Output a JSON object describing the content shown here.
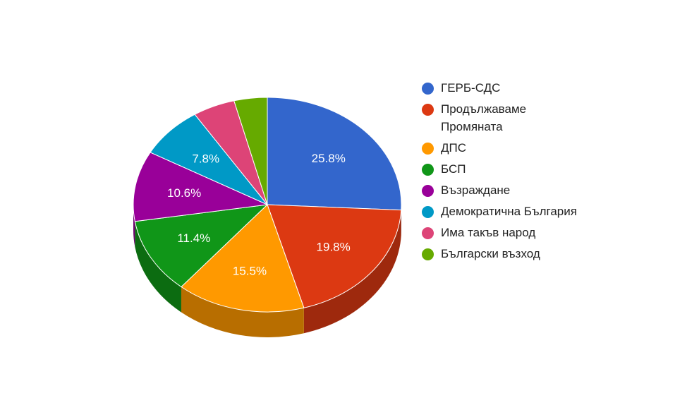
{
  "chart_data": {
    "type": "pie",
    "title": "",
    "legend_position": "right",
    "labels_on_slices": true,
    "slices": [
      {
        "label": "ГЕРБ-СДС",
        "value": 25.8,
        "value_label": "25.8%",
        "color": "#3366cc"
      },
      {
        "label": "Продължаваме Промяната",
        "value": 19.8,
        "value_label": "19.8%",
        "color": "#dc3912"
      },
      {
        "label": "ДПС",
        "value": 15.5,
        "value_label": "15.5%",
        "color": "#ff9900"
      },
      {
        "label": "БСП",
        "value": 11.4,
        "value_label": "11.4%",
        "color": "#109618"
      },
      {
        "label": "Възраждане",
        "value": 10.6,
        "value_label": "10.6%",
        "color": "#990099"
      },
      {
        "label": "Демократична България",
        "value": 7.8,
        "value_label": "7.8%",
        "color": "#0099c6"
      },
      {
        "label": "Има такъв народ",
        "value": 5.1,
        "value_label": "",
        "color": "#dd4477"
      },
      {
        "label": "Български възход",
        "value": 4.0,
        "value_label": "",
        "color": "#66aa00"
      }
    ]
  }
}
